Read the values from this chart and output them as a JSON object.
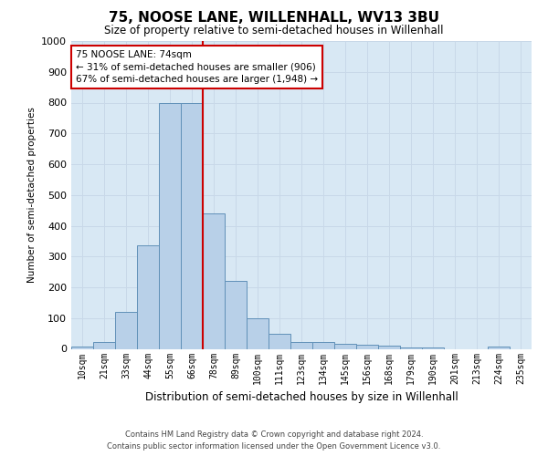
{
  "title": "75, NOOSE LANE, WILLENHALL, WV13 3BU",
  "subtitle": "Size of property relative to semi-detached houses in Willenhall",
  "xlabel": "Distribution of semi-detached houses by size in Willenhall",
  "ylabel": "Number of semi-detached properties",
  "bar_labels": [
    "10sqm",
    "21sqm",
    "33sqm",
    "44sqm",
    "55sqm",
    "66sqm",
    "78sqm",
    "89sqm",
    "100sqm",
    "111sqm",
    "123sqm",
    "134sqm",
    "145sqm",
    "156sqm",
    "168sqm",
    "179sqm",
    "190sqm",
    "201sqm",
    "213sqm",
    "224sqm",
    "235sqm"
  ],
  "bar_values": [
    7,
    22,
    120,
    335,
    800,
    800,
    440,
    220,
    100,
    48,
    22,
    22,
    15,
    12,
    10,
    5,
    5,
    0,
    0,
    7,
    0
  ],
  "bar_color": "#b8d0e8",
  "bar_edge_color": "#6090b8",
  "vline_color": "#cc0000",
  "annotation_text": "75 NOOSE LANE: 74sqm\n← 31% of semi-detached houses are smaller (906)\n67% of semi-detached houses are larger (1,948) →",
  "annotation_box_color": "#ffffff",
  "annotation_box_edge": "#cc0000",
  "ylim": [
    0,
    1000
  ],
  "yticks": [
    0,
    100,
    200,
    300,
    400,
    500,
    600,
    700,
    800,
    900,
    1000
  ],
  "grid_color": "#c8d8e8",
  "background_color": "#d8e8f4",
  "footer_line1": "Contains HM Land Registry data © Crown copyright and database right 2024.",
  "footer_line2": "Contains public sector information licensed under the Open Government Licence v3.0."
}
